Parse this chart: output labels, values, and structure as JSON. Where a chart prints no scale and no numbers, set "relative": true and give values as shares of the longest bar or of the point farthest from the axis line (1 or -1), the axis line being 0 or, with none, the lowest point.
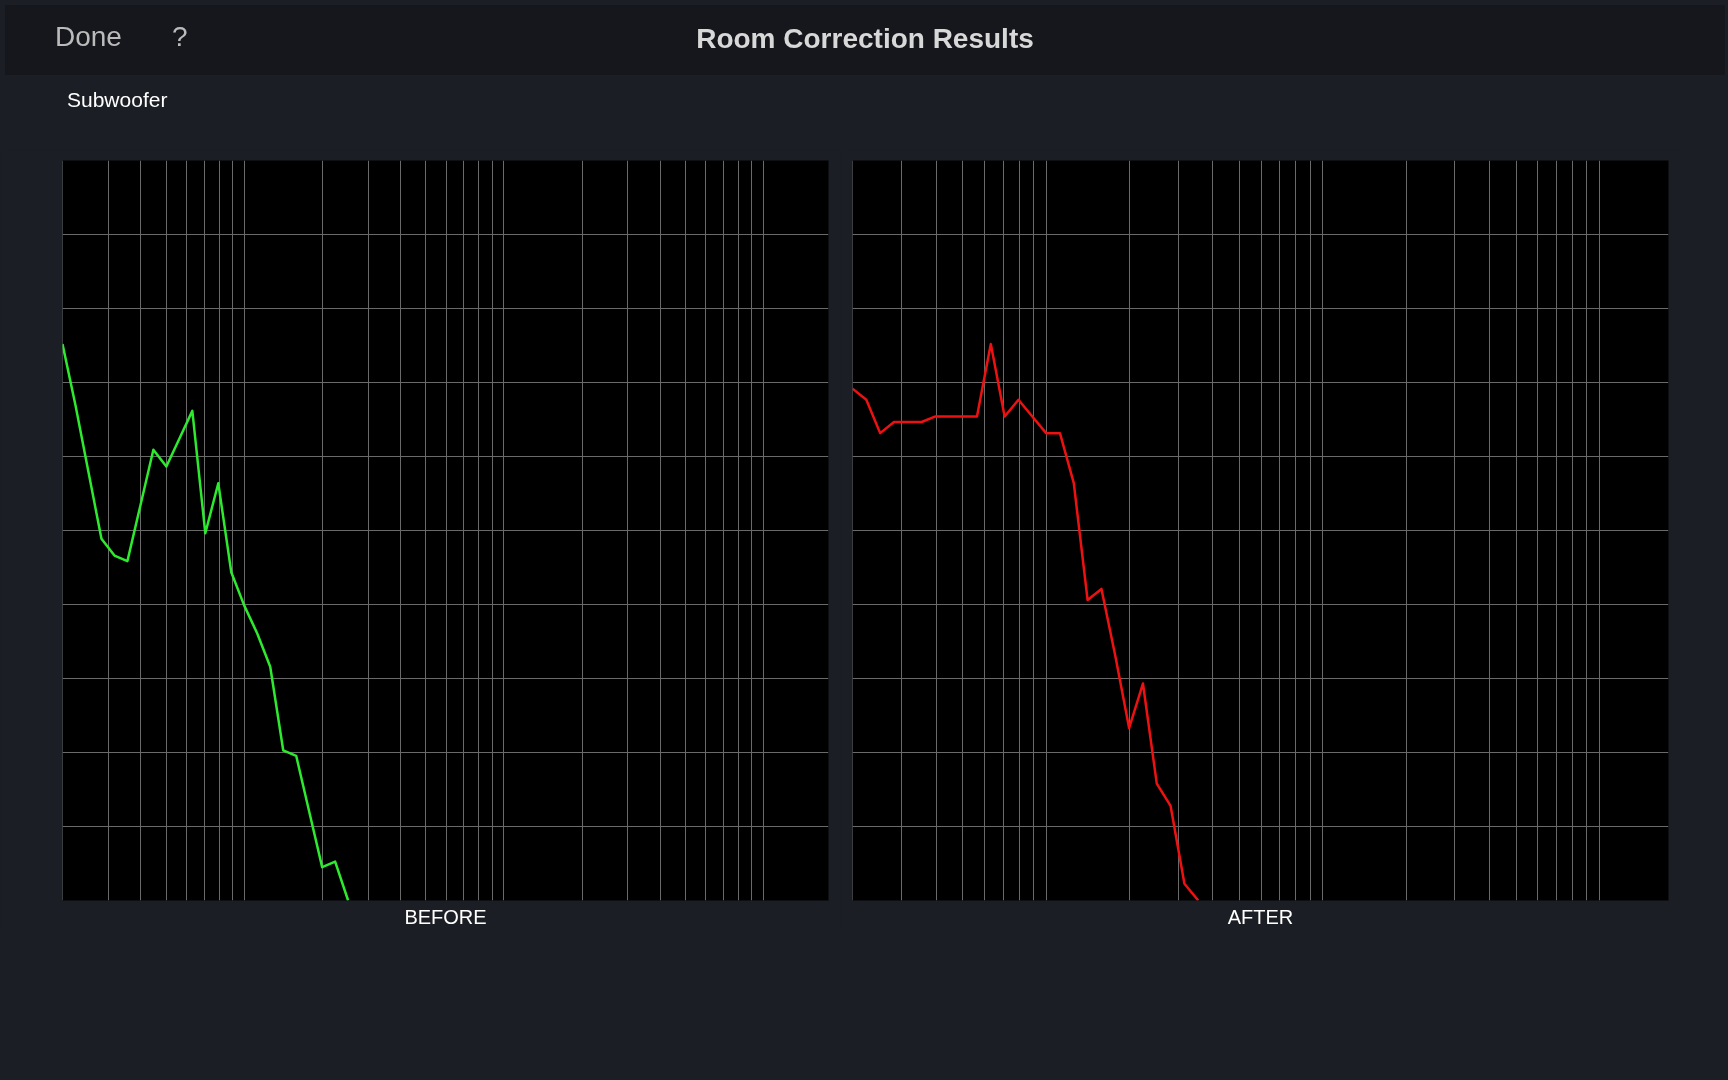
{
  "chart_data": [
    {
      "type": "line",
      "title": "Room Correction Results",
      "subtitle": "Subwoofer",
      "xlabel": "BEFORE",
      "annotations": [
        "Done",
        "?"
      ],
      "relative": true,
      "grid": true,
      "marker": "none",
      "line_style": "solid",
      "categories": [
        null,
        null,
        null,
        null,
        null,
        null,
        null,
        null,
        null,
        null,
        null,
        null,
        null,
        null,
        null,
        null,
        null,
        null,
        null,
        null,
        null,
        null,
        null,
        null,
        null,
        null,
        null,
        null,
        null,
        null,
        null,
        null,
        null,
        null,
        null,
        null,
        null,
        null,
        null,
        null,
        null,
        null,
        null,
        null,
        null,
        null,
        null,
        null,
        null,
        null,
        null,
        null,
        null,
        null,
        null,
        null,
        null,
        null,
        null,
        null
      ],
      "series": [
        {
          "color": "#2eea2e",
          "values": [
            1.0,
            0.89,
            0.77,
            0.65,
            0.62,
            0.61,
            0.71,
            0.81,
            0.78,
            0.83,
            0.88,
            0.66,
            0.75,
            0.59,
            0.53,
            0.48,
            0.42,
            0.27,
            0.26,
            0.16,
            0.06,
            0.07,
            0.0,
            null,
            null,
            null,
            null,
            null,
            null,
            null,
            null,
            null,
            null,
            null,
            null,
            null,
            null,
            null,
            null,
            null,
            null,
            null,
            null,
            null,
            null,
            null,
            null,
            null,
            null,
            null,
            null,
            null,
            null,
            null,
            null,
            null,
            null,
            null,
            null,
            null
          ]
        }
      ]
    },
    {
      "type": "line",
      "xlabel": "AFTER",
      "relative": true,
      "grid": true,
      "marker": "none",
      "line_style": "solid",
      "categories": [
        null,
        null,
        null,
        null,
        null,
        null,
        null,
        null,
        null,
        null,
        null,
        null,
        null,
        null,
        null,
        null,
        null,
        null,
        null,
        null,
        null,
        null,
        null,
        null,
        null,
        null,
        null,
        null,
        null,
        null,
        null,
        null,
        null,
        null,
        null,
        null,
        null,
        null,
        null,
        null,
        null,
        null,
        null,
        null,
        null,
        null,
        null,
        null,
        null,
        null,
        null,
        null,
        null,
        null,
        null,
        null,
        null,
        null,
        null,
        null
      ],
      "series": [
        {
          "color": "#ee1111",
          "values": [
            0.92,
            0.9,
            0.84,
            0.86,
            0.86,
            0.86,
            0.87,
            0.87,
            0.87,
            0.87,
            1.0,
            0.87,
            0.9,
            0.87,
            0.84,
            0.84,
            0.75,
            0.54,
            0.56,
            0.44,
            0.31,
            0.39,
            0.21,
            0.17,
            0.03,
            0.0,
            null,
            null,
            null,
            null,
            null,
            null,
            null,
            null,
            null,
            null,
            null,
            null,
            null,
            null,
            null,
            null,
            null,
            null,
            null,
            null,
            null,
            null,
            null,
            null,
            null,
            null,
            null,
            null,
            null,
            null,
            null,
            null,
            null,
            null
          ]
        }
      ]
    }
  ]
}
